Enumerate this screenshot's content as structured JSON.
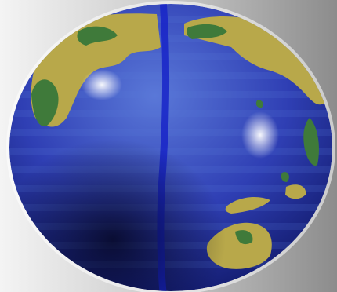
{
  "image": {
    "subject": "globe-icon",
    "colors": {
      "background_light": "#f4f4f4",
      "background_mid": "#c9c9c9",
      "background_dark": "#8c8c8c",
      "ocean_light": "#5a78d8",
      "ocean_mid": "#2f3fb4",
      "ocean_dark": "#101868",
      "land_yellow": "#b8a84a",
      "land_green": "#3f7a3a",
      "seam": "#1824c8",
      "highlight": "#ffffff"
    }
  }
}
